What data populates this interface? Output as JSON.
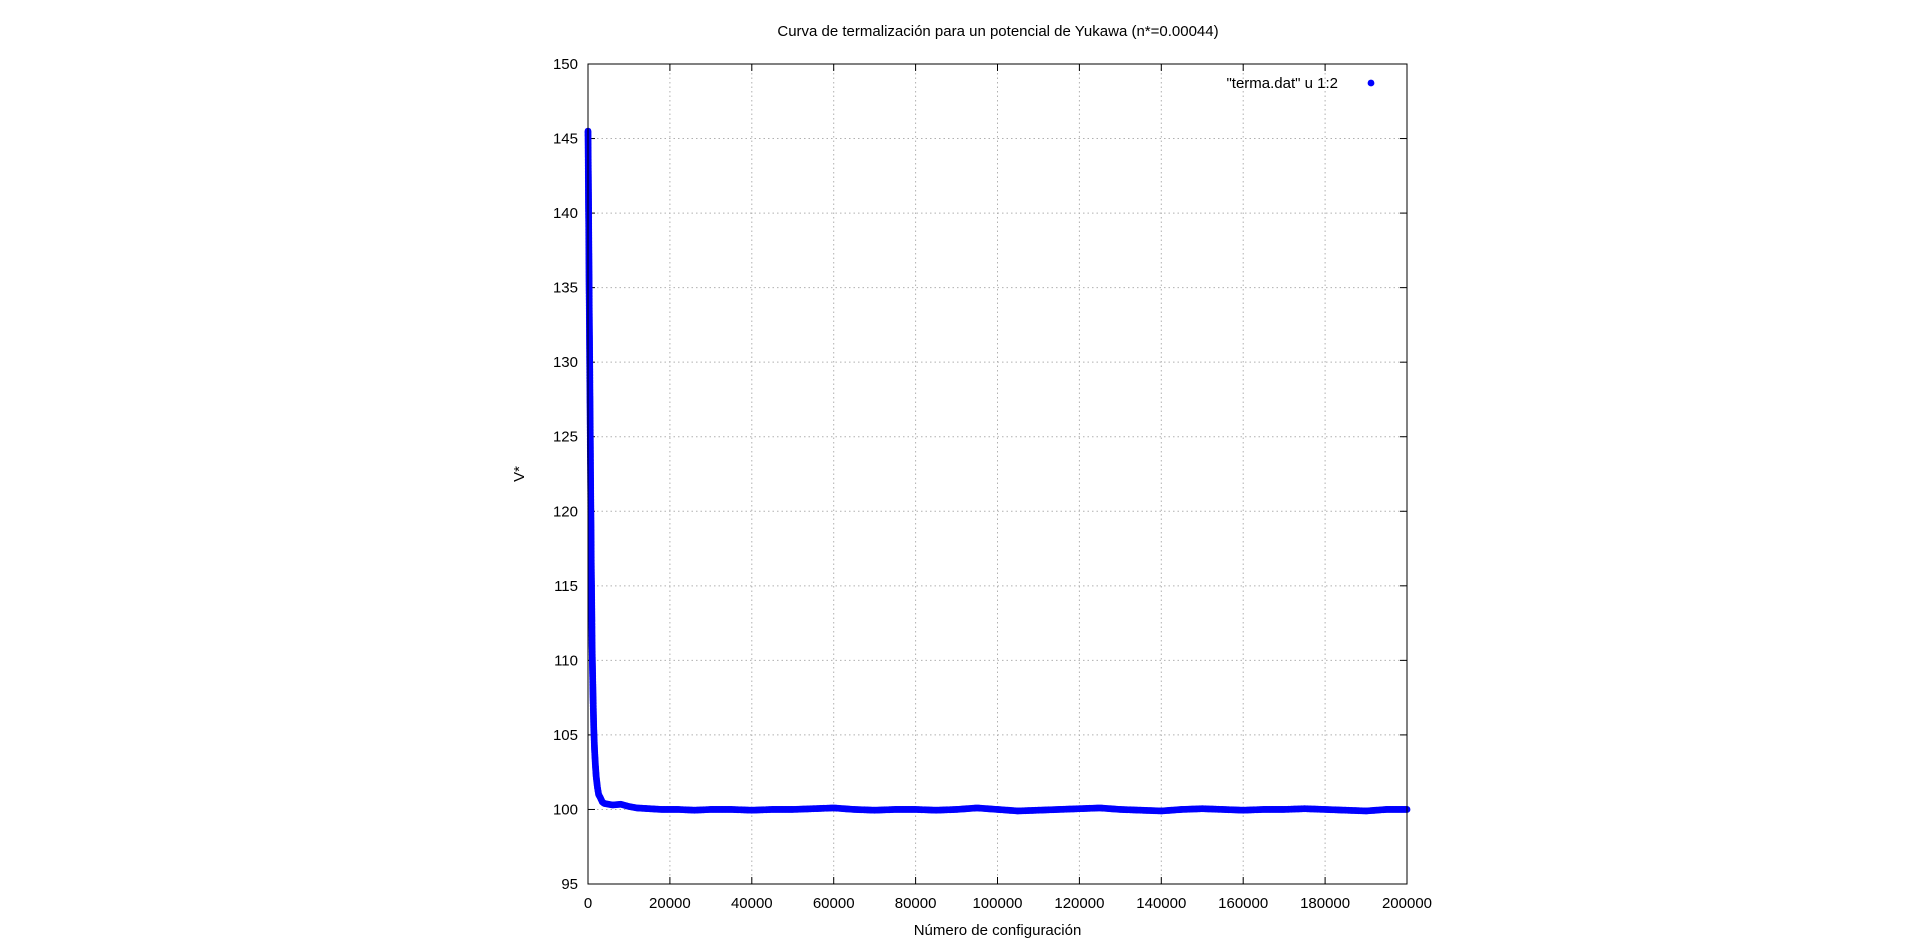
{
  "chart_data": {
    "type": "scatter",
    "title": "Curva de termalización para un potencial de Yukawa (n*=0.00044)",
    "xlabel": "Número de configuración",
    "ylabel": "V*",
    "xlim": [
      0,
      200000
    ],
    "ylim": [
      95,
      150
    ],
    "grid": true,
    "legend_position": "top-right",
    "x_ticks": [
      0,
      20000,
      40000,
      60000,
      80000,
      100000,
      120000,
      140000,
      160000,
      180000,
      200000
    ],
    "x_tick_labels": [
      "0",
      "20000",
      "40000",
      "60000",
      "80000",
      "100000",
      "120000",
      "140000",
      "160000",
      "180000",
      "200000"
    ],
    "y_ticks": [
      95,
      100,
      105,
      110,
      115,
      120,
      125,
      130,
      135,
      140,
      145,
      150
    ],
    "y_tick_labels": [
      "95",
      "100",
      "105",
      "110",
      "115",
      "120",
      "125",
      "130",
      "135",
      "140",
      "145",
      "150"
    ],
    "series": [
      {
        "name": "\"terma.dat\" u 1:2",
        "color": "#0000ff",
        "marker": "filled-circle",
        "x": [
          0,
          100,
          200,
          300,
          400,
          500,
          600,
          700,
          800,
          900,
          1000,
          1200,
          1400,
          1600,
          1800,
          2000,
          2300,
          2600,
          3000,
          3500,
          4000,
          5000,
          6000,
          8000,
          10000,
          12000,
          15000,
          18000,
          22000,
          26000,
          30000,
          35000,
          40000,
          45000,
          50000,
          55000,
          60000,
          65000,
          70000,
          75000,
          80000,
          85000,
          90000,
          95000,
          100000,
          105000,
          110000,
          115000,
          120000,
          125000,
          130000,
          135000,
          140000,
          145000,
          150000,
          155000,
          160000,
          165000,
          170000,
          175000,
          180000,
          185000,
          190000,
          195000,
          200000
        ],
        "values": [
          145.5,
          142.0,
          138.0,
          134.0,
          130.5,
          127.0,
          123.5,
          120.0,
          116.5,
          114.0,
          111.0,
          108.0,
          105.5,
          104.0,
          103.0,
          102.2,
          101.5,
          101.0,
          100.8,
          100.5,
          100.4,
          100.35,
          100.3,
          100.35,
          100.2,
          100.1,
          100.05,
          100.0,
          100.0,
          99.95,
          100.0,
          100.0,
          99.95,
          100.0,
          100.0,
          100.05,
          100.1,
          100.0,
          99.95,
          100.0,
          100.0,
          99.95,
          100.0,
          100.1,
          100.0,
          99.9,
          99.95,
          100.0,
          100.05,
          100.1,
          100.0,
          99.95,
          99.9,
          100.0,
          100.05,
          100.0,
          99.95,
          100.0,
          100.0,
          100.05,
          100.0,
          99.95,
          99.9,
          100.0,
          100.0
        ]
      }
    ]
  }
}
